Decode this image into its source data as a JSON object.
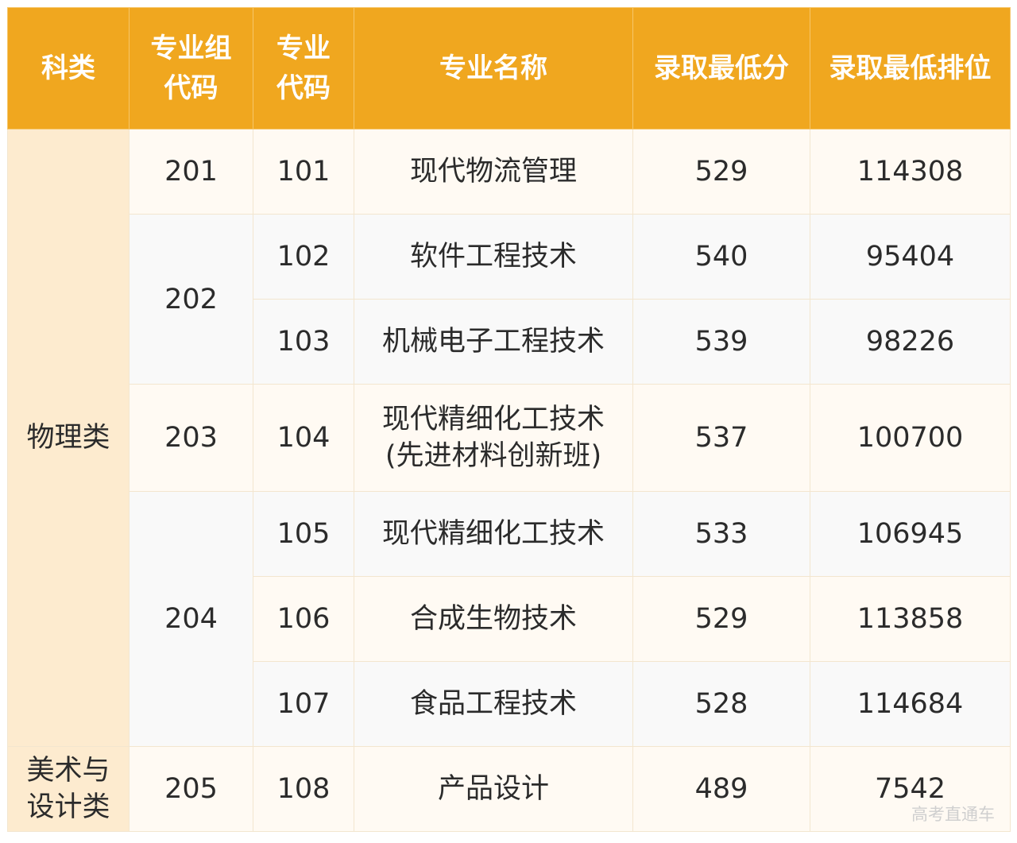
{
  "headers": {
    "category": "科类",
    "group_code_line1": "专业组",
    "group_code_line2": "代码",
    "major_code_line1": "专业",
    "major_code_line2": "代码",
    "major_name": "专业名称",
    "min_score": "录取最低分",
    "min_rank": "录取最低排位"
  },
  "categories": {
    "physics": "物理类",
    "art_line1": "美术与",
    "art_line2": "设计类"
  },
  "groups": {
    "g201": "201",
    "g202": "202",
    "g203": "203",
    "g204": "204",
    "g205": "205"
  },
  "rows": [
    {
      "code": "101",
      "name": "现代物流管理",
      "score": "529",
      "rank": "114308"
    },
    {
      "code": "102",
      "name": "软件工程技术",
      "score": "540",
      "rank": "95404"
    },
    {
      "code": "103",
      "name": "机械电子工程技术",
      "score": "539",
      "rank": "98226"
    },
    {
      "code": "104",
      "name_line1": "现代精细化工技术",
      "name_line2": "(先进材料创新班)",
      "score": "537",
      "rank": "100700"
    },
    {
      "code": "105",
      "name": "现代精细化工技术",
      "score": "533",
      "rank": "106945"
    },
    {
      "code": "106",
      "name": "合成生物技术",
      "score": "529",
      "rank": "113858"
    },
    {
      "code": "107",
      "name": "食品工程技术",
      "score": "528",
      "rank": "114684"
    },
    {
      "code": "108",
      "name": "产品设计",
      "score": "489",
      "rank": "7542"
    }
  ],
  "watermark": "高考直通车"
}
